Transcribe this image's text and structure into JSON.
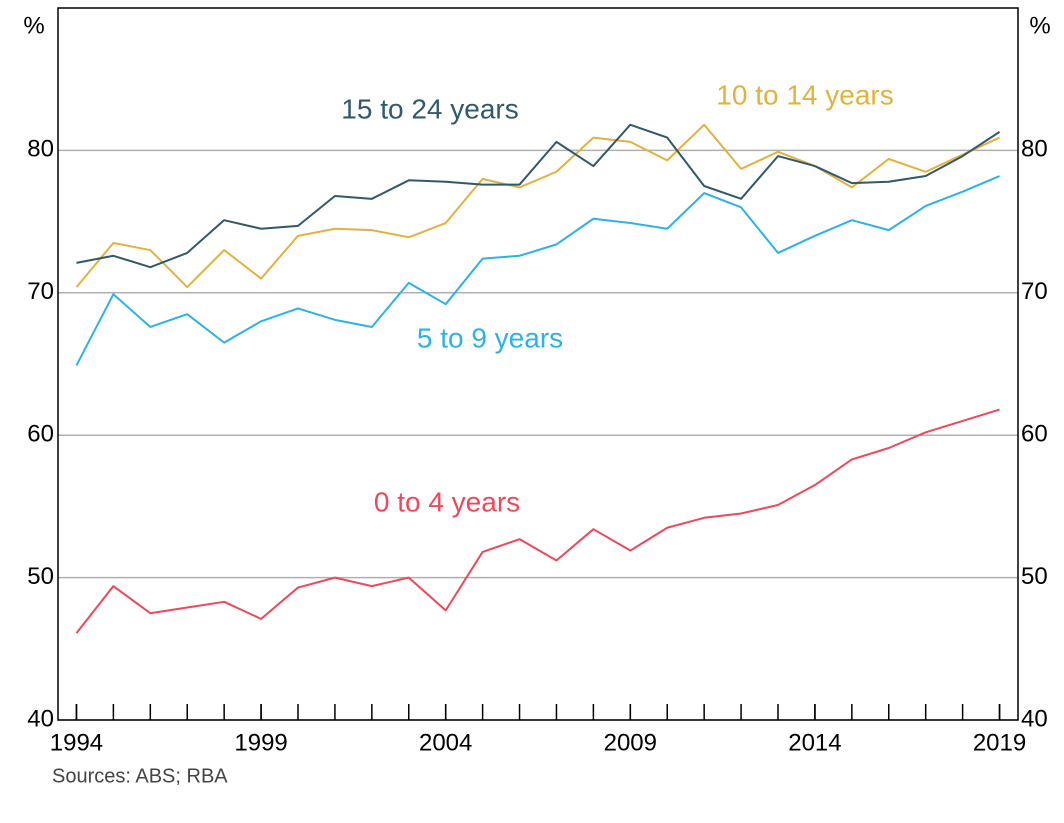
{
  "chart_data": {
    "type": "line",
    "ylabel": "%",
    "y2label": "%",
    "x": [
      1994,
      1995,
      1996,
      1997,
      1998,
      1999,
      2000,
      2001,
      2002,
      2003,
      2004,
      2005,
      2006,
      2007,
      2008,
      2009,
      2010,
      2011,
      2012,
      2013,
      2014,
      2015,
      2016,
      2017,
      2018,
      2019
    ],
    "xlim": [
      1993.5,
      2019.5
    ],
    "xticks": [
      1994,
      1999,
      2004,
      2009,
      2014,
      2019
    ],
    "xminor_ticks": [
      1994,
      1995,
      1996,
      1997,
      1998,
      1999,
      2000,
      2001,
      2002,
      2003,
      2004,
      2005,
      2006,
      2007,
      2008,
      2009,
      2010,
      2011,
      2012,
      2013,
      2014,
      2015,
      2016,
      2017,
      2018,
      2019
    ],
    "ylim": [
      40,
      90
    ],
    "yticks": [
      40,
      50,
      60,
      70,
      80
    ],
    "y2lim": [
      40,
      90
    ],
    "y2ticks": [
      40,
      50,
      60,
      70,
      80
    ],
    "grid": true,
    "series": [
      {
        "name": "0 to 4 years",
        "color": "#f0475a",
        "values": [
          46.1,
          49.4,
          47.5,
          47.9,
          48.3,
          47.1,
          49.3,
          50.0,
          49.4,
          50.0,
          47.7,
          51.8,
          52.7,
          51.2,
          53.4,
          51.9,
          53.5,
          54.2,
          54.5,
          55.1,
          56.5,
          58.3,
          59.1,
          60.2,
          61.0,
          61.8
        ]
      },
      {
        "name": "5 to 9 years",
        "color": "#2bb2e8",
        "values": [
          64.9,
          69.9,
          67.6,
          68.5,
          66.5,
          68.0,
          68.9,
          68.1,
          67.6,
          70.7,
          69.2,
          72.4,
          72.6,
          73.4,
          75.2,
          74.9,
          74.5,
          77.0,
          76.0,
          72.8,
          74.0,
          75.1,
          74.4,
          76.1,
          77.1,
          78.2
        ]
      },
      {
        "name": "10 to 14 years",
        "color": "#e3b23c",
        "values": [
          70.4,
          73.5,
          73.0,
          70.4,
          73.0,
          71.0,
          74.0,
          74.5,
          74.4,
          73.9,
          74.9,
          78.0,
          77.4,
          78.5,
          80.9,
          80.6,
          79.3,
          81.8,
          78.7,
          79.9,
          78.9,
          77.4,
          79.4,
          78.5,
          79.7,
          80.9
        ]
      },
      {
        "name": "15 to 24 years",
        "color": "#30596b",
        "values": [
          72.1,
          72.6,
          71.8,
          72.8,
          75.1,
          74.5,
          74.7,
          76.8,
          76.6,
          77.9,
          77.8,
          77.6,
          77.6,
          80.6,
          78.9,
          81.8,
          80.9,
          77.5,
          76.6,
          79.6,
          78.9,
          77.7,
          77.8,
          78.2,
          79.6,
          81.3
        ]
      }
    ],
    "source": "Sources:  ABS; RBA"
  }
}
